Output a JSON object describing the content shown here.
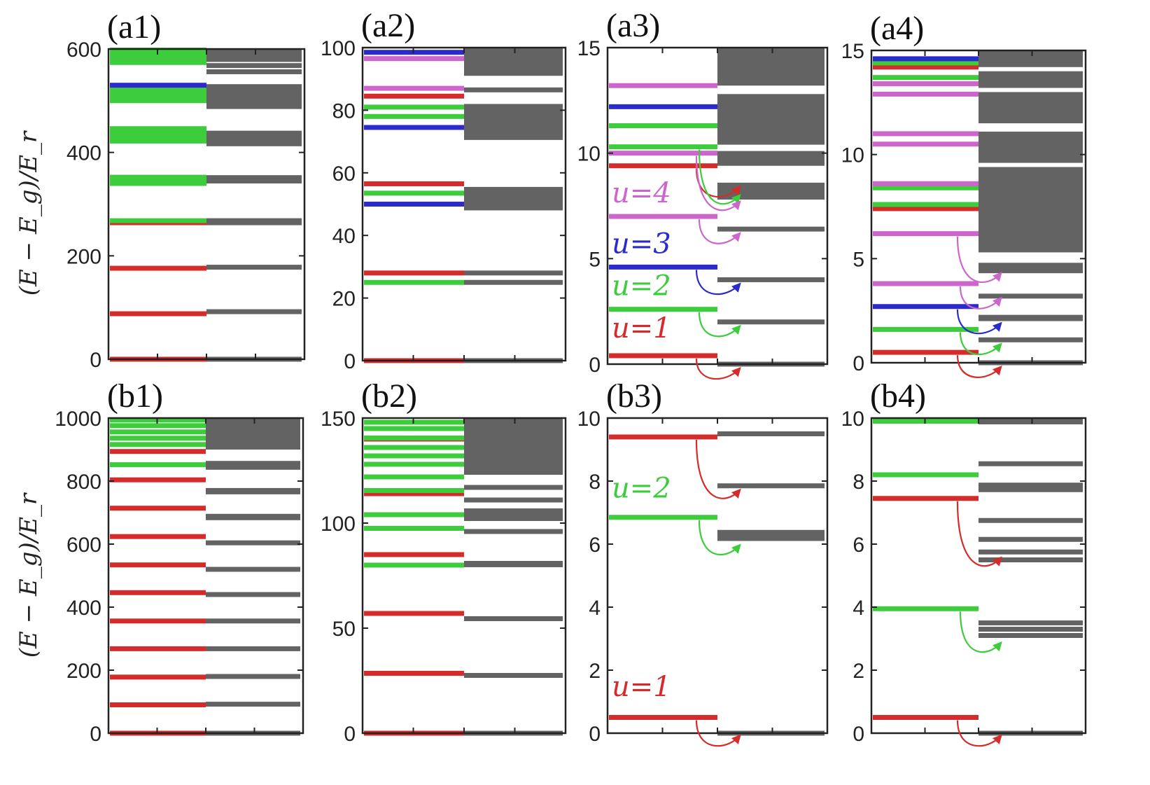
{
  "colors": {
    "red": "#d62b2b",
    "green": "#3ccc3c",
    "blue": "#2b2bcc",
    "violet": "#cc66cc",
    "gray": "#636363",
    "axis": "#222222"
  },
  "ylabel": "(E − E_g)/E_r",
  "chart_data": [
    {
      "id": "a1",
      "label": "(a1)",
      "type": "level-diagram",
      "ylim": [
        0,
        600
      ],
      "yticks": [
        0,
        200,
        400,
        600
      ],
      "ylabel": "(E − E_g)/E_r",
      "levels": [
        {
          "e": 0,
          "c": "red"
        },
        {
          "e": 88,
          "c": "red"
        },
        {
          "e": 176,
          "c": "red"
        },
        {
          "e": 264,
          "c": "red"
        },
        {
          "e": 268,
          "c": "green"
        },
        {
          "e": 340,
          "c": "green"
        },
        {
          "e": 346,
          "c": "green"
        },
        {
          "e": 352,
          "c": "green"
        },
        {
          "e": 422,
          "c": "green"
        },
        {
          "e": 430,
          "c": "green"
        },
        {
          "e": 438,
          "c": "green"
        },
        {
          "e": 446,
          "c": "green"
        },
        {
          "e": 500,
          "c": "green"
        },
        {
          "e": 508,
          "c": "green"
        },
        {
          "e": 516,
          "c": "green"
        },
        {
          "e": 524,
          "c": "green"
        },
        {
          "e": 530,
          "c": "blue"
        },
        {
          "e": 574,
          "c": "green"
        },
        {
          "e": 582,
          "c": "green"
        },
        {
          "e": 590,
          "c": "green"
        },
        {
          "e": 598,
          "c": "green"
        }
      ],
      "spectrum": [
        {
          "e": 0
        },
        {
          "e": 92
        },
        {
          "e": 178
        },
        {
          "e": 264
        },
        {
          "e": 268
        },
        {
          "from": 340,
          "to": 356
        },
        {
          "from": 412,
          "to": 442
        },
        {
          "from": 484,
          "to": 532
        },
        {
          "e": 556
        },
        {
          "e": 568
        },
        {
          "from": 575,
          "to": 600
        }
      ],
      "transitions": [],
      "annotations": []
    },
    {
      "id": "a2",
      "label": "(a2)",
      "type": "level-diagram",
      "ylim": [
        0,
        100
      ],
      "yticks": [
        0,
        20,
        40,
        60,
        80,
        100
      ],
      "ylabel": "",
      "levels": [
        {
          "e": 0,
          "c": "red"
        },
        {
          "e": 25,
          "c": "green"
        },
        {
          "e": 28,
          "c": "red"
        },
        {
          "e": 50,
          "c": "blue"
        },
        {
          "e": 53.5,
          "c": "green"
        },
        {
          "e": 56.5,
          "c": "red"
        },
        {
          "e": 74.5,
          "c": "blue"
        },
        {
          "e": 78,
          "c": "green"
        },
        {
          "e": 81,
          "c": "green"
        },
        {
          "e": 84.5,
          "c": "red"
        },
        {
          "e": 87,
          "c": "violet"
        },
        {
          "e": 96.5,
          "c": "violet"
        },
        {
          "e": 98.5,
          "c": "blue"
        }
      ],
      "spectrum": [
        {
          "e": 0
        },
        {
          "e": 25
        },
        {
          "e": 28
        },
        {
          "from": 48,
          "to": 55.5
        },
        {
          "from": 70.5,
          "to": 82
        },
        {
          "e": 86.5
        },
        {
          "from": 91,
          "to": 100
        }
      ],
      "transitions": [],
      "annotations": []
    },
    {
      "id": "a3",
      "label": "(a3)",
      "type": "level-diagram",
      "ylim": [
        0,
        15
      ],
      "yticks": [
        0,
        5,
        10,
        15
      ],
      "ylabel": "",
      "levels": [
        {
          "e": 0.4,
          "c": "red"
        },
        {
          "e": 2.6,
          "c": "green"
        },
        {
          "e": 4.6,
          "c": "blue"
        },
        {
          "e": 7.0,
          "c": "violet"
        },
        {
          "e": 9.4,
          "c": "red"
        },
        {
          "e": 10.0,
          "c": "violet"
        },
        {
          "e": 10.3,
          "c": "green"
        },
        {
          "e": 11.3,
          "c": "green"
        },
        {
          "e": 12.2,
          "c": "blue"
        },
        {
          "e": 13.2,
          "c": "violet"
        }
      ],
      "spectrum": [
        {
          "e": 0
        },
        {
          "e": 2.0
        },
        {
          "e": 4.0
        },
        {
          "e": 6.4
        },
        {
          "from": 7.8,
          "to": 8.6
        },
        {
          "from": 9.4,
          "to": 10.1
        },
        {
          "from": 10.4,
          "to": 12.8
        },
        {
          "from": 13.2,
          "to": 15
        }
      ],
      "transitions": [
        {
          "from": 0.4,
          "to": 0,
          "c": "red"
        },
        {
          "from": 2.6,
          "to": 2.0,
          "c": "green"
        },
        {
          "from": 4.6,
          "to": 4.0,
          "c": "blue"
        },
        {
          "from": 7.0,
          "to": 6.4,
          "c": "violet"
        },
        {
          "from": 9.4,
          "to": 8.6,
          "c": "red"
        },
        {
          "from": 10.3,
          "to": 8.2,
          "c": "green"
        },
        {
          "from": 10.0,
          "to": 7.9,
          "c": "violet"
        }
      ],
      "annotations": [
        {
          "text": "u=1",
          "c": "red",
          "e": 1.0
        },
        {
          "text": "u=2",
          "c": "green",
          "e": 3.0
        },
        {
          "text": "u=3",
          "c": "blue",
          "e": 5.0
        },
        {
          "text": "u=4",
          "c": "violet",
          "e": 7.4
        }
      ]
    },
    {
      "id": "a4",
      "label": "(a4)",
      "type": "level-diagram",
      "ylim": [
        0,
        15
      ],
      "yticks": [
        0,
        5,
        10,
        15
      ],
      "ylabel": "",
      "levels": [
        {
          "e": 0.5,
          "c": "red"
        },
        {
          "e": 1.6,
          "c": "green"
        },
        {
          "e": 2.7,
          "c": "blue"
        },
        {
          "e": 3.8,
          "c": "violet"
        },
        {
          "e": 6.2,
          "c": "violet"
        },
        {
          "e": 7.4,
          "c": "red"
        },
        {
          "e": 7.6,
          "c": "green"
        },
        {
          "e": 8.4,
          "c": "green"
        },
        {
          "e": 8.6,
          "c": "violet"
        },
        {
          "e": 10.5,
          "c": "violet"
        },
        {
          "e": 11.0,
          "c": "violet"
        },
        {
          "e": 12.9,
          "c": "violet"
        },
        {
          "e": 13.4,
          "c": "violet"
        },
        {
          "e": 13.7,
          "c": "green"
        },
        {
          "e": 14.2,
          "c": "red"
        },
        {
          "e": 14.4,
          "c": "green"
        },
        {
          "e": 14.6,
          "c": "blue"
        }
      ],
      "spectrum": [
        {
          "e": 0
        },
        {
          "e": 1.1
        },
        {
          "from": 2.0,
          "to": 2.3
        },
        {
          "e": 3.2
        },
        {
          "from": 4.3,
          "to": 4.8
        },
        {
          "from": 5.3,
          "to": 9.4
        },
        {
          "from": 9.6,
          "to": 11.1
        },
        {
          "from": 11.5,
          "to": 13.0
        },
        {
          "from": 13.2,
          "to": 14.0
        },
        {
          "from": 14.2,
          "to": 15
        }
      ],
      "transitions": [
        {
          "from": 0.5,
          "to": 0,
          "c": "red"
        },
        {
          "from": 1.6,
          "to": 1.1,
          "c": "green"
        },
        {
          "from": 2.7,
          "to": 2.1,
          "c": "blue"
        },
        {
          "from": 3.8,
          "to": 3.3,
          "c": "violet"
        },
        {
          "from": 6.2,
          "to": 4.5,
          "c": "violet"
        }
      ],
      "annotations": []
    },
    {
      "id": "b1",
      "label": "(b1)",
      "type": "level-diagram",
      "ylim": [
        0,
        1000
      ],
      "yticks": [
        0,
        200,
        400,
        600,
        800,
        1000
      ],
      "ylabel": "(E − E_g)/E_r",
      "levels": [
        {
          "e": 0,
          "c": "red"
        },
        {
          "e": 90,
          "c": "red"
        },
        {
          "e": 178,
          "c": "red"
        },
        {
          "e": 268,
          "c": "red"
        },
        {
          "e": 356,
          "c": "red"
        },
        {
          "e": 446,
          "c": "red"
        },
        {
          "e": 534,
          "c": "red"
        },
        {
          "e": 624,
          "c": "red"
        },
        {
          "e": 714,
          "c": "red"
        },
        {
          "e": 804,
          "c": "red"
        },
        {
          "e": 852,
          "c": "green"
        },
        {
          "e": 894,
          "c": "red"
        },
        {
          "e": 916,
          "c": "green"
        },
        {
          "e": 936,
          "c": "green"
        },
        {
          "e": 956,
          "c": "green"
        },
        {
          "e": 976,
          "c": "green"
        },
        {
          "e": 994,
          "c": "green"
        }
      ],
      "spectrum": [
        {
          "e": 0
        },
        {
          "e": 92
        },
        {
          "e": 180
        },
        {
          "e": 268
        },
        {
          "e": 356
        },
        {
          "e": 440
        },
        {
          "e": 520
        },
        {
          "e": 604
        },
        {
          "from": 676,
          "to": 696
        },
        {
          "from": 758,
          "to": 778
        },
        {
          "from": 836,
          "to": 864
        },
        {
          "from": 900,
          "to": 1000
        }
      ],
      "transitions": [],
      "annotations": []
    },
    {
      "id": "b2",
      "label": "(b2)",
      "type": "level-diagram",
      "ylim": [
        0,
        150
      ],
      "yticks": [
        0,
        50,
        100,
        150
      ],
      "ylabel": "",
      "levels": [
        {
          "e": 0,
          "c": "red"
        },
        {
          "e": 28.5,
          "c": "red"
        },
        {
          "e": 57,
          "c": "red"
        },
        {
          "e": 80,
          "c": "green"
        },
        {
          "e": 85,
          "c": "red"
        },
        {
          "e": 97.5,
          "c": "green"
        },
        {
          "e": 104,
          "c": "green"
        },
        {
          "e": 114,
          "c": "red"
        },
        {
          "e": 115.5,
          "c": "green"
        },
        {
          "e": 122,
          "c": "green"
        },
        {
          "e": 128,
          "c": "green"
        },
        {
          "e": 132,
          "c": "green"
        },
        {
          "e": 136,
          "c": "green"
        },
        {
          "e": 140,
          "c": "red"
        },
        {
          "e": 140.5,
          "c": "green"
        },
        {
          "e": 145,
          "c": "green"
        },
        {
          "e": 148,
          "c": "green"
        }
      ],
      "spectrum": [
        {
          "e": 0
        },
        {
          "e": 27.5
        },
        {
          "e": 54.5
        },
        {
          "from": 79,
          "to": 82
        },
        {
          "e": 96
        },
        {
          "from": 101,
          "to": 107
        },
        {
          "e": 111
        },
        {
          "e": 117
        },
        {
          "from": 123,
          "to": 150
        }
      ],
      "transitions": [],
      "annotations": []
    },
    {
      "id": "b3",
      "label": "(b3)",
      "type": "level-diagram",
      "ylim": [
        0,
        10
      ],
      "yticks": [
        0,
        2,
        4,
        6,
        8,
        10
      ],
      "ylabel": "",
      "levels": [
        {
          "e": 0.5,
          "c": "red"
        },
        {
          "e": 6.85,
          "c": "green"
        },
        {
          "e": 9.4,
          "c": "red"
        }
      ],
      "spectrum": [
        {
          "e": 0
        },
        {
          "from": 6.1,
          "to": 6.45
        },
        {
          "e": 7.85
        },
        {
          "e": 9.5
        }
      ],
      "transitions": [
        {
          "from": 0.5,
          "to": 0.05,
          "c": "red"
        },
        {
          "from": 6.85,
          "to": 6.1,
          "c": "green"
        },
        {
          "from": 9.4,
          "to": 7.85,
          "c": "red"
        }
      ],
      "annotations": [
        {
          "text": "u=1",
          "c": "red",
          "e": 1.0
        },
        {
          "text": "u=2",
          "c": "green",
          "e": 7.3
        }
      ]
    },
    {
      "id": "b4",
      "label": "(b4)",
      "type": "level-diagram",
      "ylim": [
        0,
        10
      ],
      "yticks": [
        0,
        2,
        4,
        6,
        8,
        10
      ],
      "ylabel": "",
      "levels": [
        {
          "e": 0.5,
          "c": "red"
        },
        {
          "e": 3.95,
          "c": "green"
        },
        {
          "e": 7.45,
          "c": "red"
        },
        {
          "e": 8.2,
          "c": "green"
        },
        {
          "e": 9.9,
          "c": "green"
        }
      ],
      "spectrum": [
        {
          "e": 0
        },
        {
          "e": 3.1
        },
        {
          "e": 3.3
        },
        {
          "e": 3.5
        },
        {
          "e": 5.5
        },
        {
          "e": 5.75
        },
        {
          "e": 6.15
        },
        {
          "e": 6.75
        },
        {
          "from": 7.65,
          "to": 7.95
        },
        {
          "e": 8.55
        },
        {
          "from": 9.8,
          "to": 10
        }
      ],
      "transitions": [
        {
          "from": 0.5,
          "to": 0.05,
          "c": "red"
        },
        {
          "from": 3.95,
          "to": 3.0,
          "c": "green"
        },
        {
          "from": 7.45,
          "to": 5.7,
          "c": "red"
        }
      ],
      "annotations": []
    }
  ]
}
